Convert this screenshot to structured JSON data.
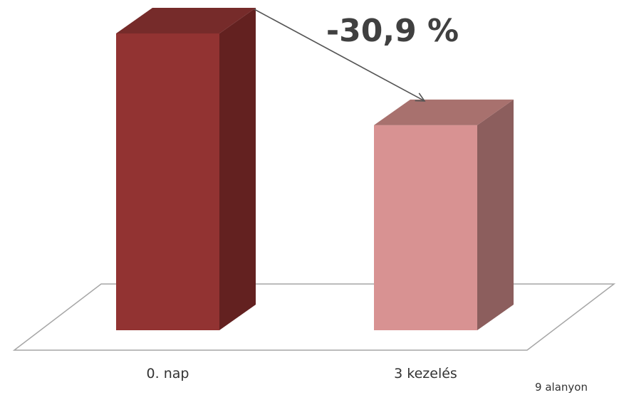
{
  "chart_data": {
    "type": "bar",
    "style": "3d",
    "categories": [
      "0. nap",
      "3 kezelés"
    ],
    "values": [
      100,
      69.1
    ],
    "ylim": [
      0,
      100
    ],
    "grid": false,
    "annotation": "-30,9 %",
    "footnote": "9 alanyon",
    "colors": {
      "bars": [
        "#923332",
        "#D89292"
      ],
      "bar_sides": [
        "#632120",
        "#8C5E5D"
      ],
      "bar_tops": [
        "#762B2A",
        "#A8716E"
      ],
      "floor": "#A6A6A6",
      "arrow": "#555555",
      "text": "#333333",
      "annotation_text": "#404040"
    }
  }
}
